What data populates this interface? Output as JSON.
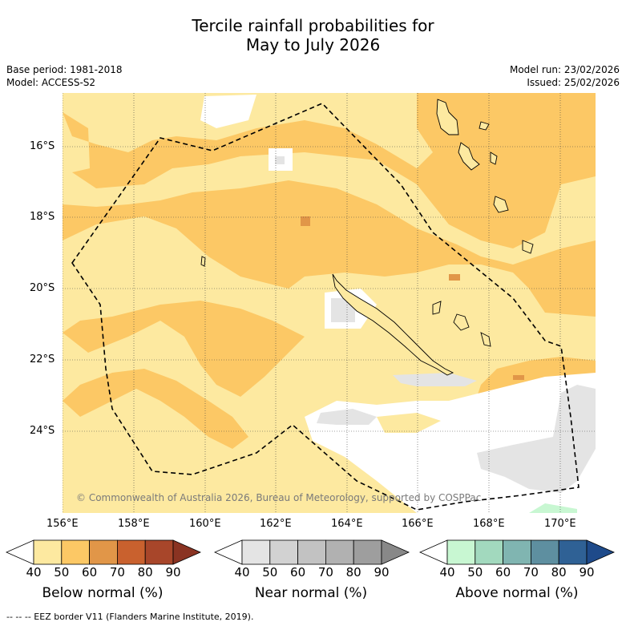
{
  "title_line1": "Tercile rainfall probabilities for",
  "title_line2": "May to July 2026",
  "base_period": "Base period: 1981-2018",
  "model": "Model: ACCESS-S2",
  "model_run": "Model run: 23/02/2026",
  "issued": "Issued: 25/02/2026",
  "copyright": "© Commonwealth of Australia 2026, Bureau of Meteorology, supported by COSPPac",
  "lat_labels": [
    "16°S",
    "18°S",
    "20°S",
    "22°S",
    "24°S"
  ],
  "lon_labels": [
    "156°E",
    "158°E",
    "160°E",
    "162°E",
    "164°E",
    "166°E",
    "168°E",
    "170°E"
  ],
  "colorbars": [
    {
      "label": "Below normal (%)",
      "ticks": [
        "40",
        "50",
        "60",
        "70",
        "80",
        "90"
      ],
      "colors": [
        "#ffffff",
        "#fde9a0",
        "#fcc865",
        "#e19648",
        "#c9612e",
        "#a8462a",
        "#8a3322"
      ]
    },
    {
      "label": "Near normal (%)",
      "ticks": [
        "40",
        "50",
        "60",
        "70",
        "80",
        "90"
      ],
      "colors": [
        "#ffffff",
        "#e4e4e4",
        "#d2d2d2",
        "#c2c2c2",
        "#b1b1b1",
        "#9e9e9e",
        "#888888"
      ]
    },
    {
      "label": "Above normal (%)",
      "ticks": [
        "40",
        "50",
        "60",
        "70",
        "80",
        "90"
      ],
      "colors": [
        "#ffffff",
        "#c8f7d2",
        "#a2d9be",
        "#80b5b1",
        "#5e8fa0",
        "#2f6195",
        "#1e4a8a"
      ]
    }
  ],
  "eez_legend": "-- -- -- EEZ border V11 (Flanders Marine Institute, 2019)."
}
